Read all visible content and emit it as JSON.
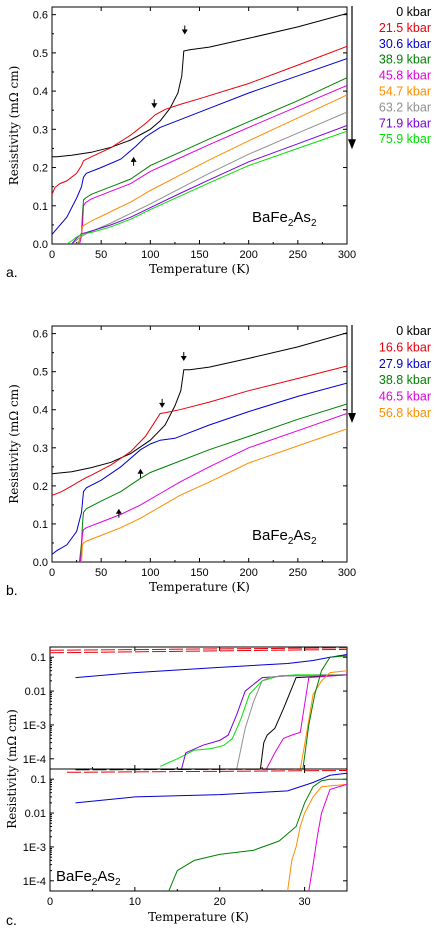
{
  "chart_data": [
    {
      "panel_label": "a.",
      "type": "line",
      "xlabel": "Temperature (K)",
      "ylabel": "Resistivity (mΩ cm)",
      "xlim": [
        0,
        300
      ],
      "ylim": [
        0,
        0.62
      ],
      "xticks": [
        "0",
        "50",
        "100",
        "150",
        "200",
        "250",
        "300"
      ],
      "yticks": [
        "0.0",
        "0.1",
        "0.2",
        "0.3",
        "0.4",
        "0.5",
        "0.6"
      ],
      "annotation": {
        "pre": "BaFe",
        "sub1": "2",
        "mid": "As",
        "sub2": "2"
      },
      "legend_position": "right",
      "series": [
        {
          "name": "0 kbar",
          "color": "#000000",
          "x": [
            0,
            5,
            20,
            40,
            60,
            80,
            100,
            110,
            120,
            128,
            132,
            134,
            140,
            160,
            200,
            250,
            300
          ],
          "y": [
            0.228,
            0.228,
            0.232,
            0.24,
            0.253,
            0.272,
            0.3,
            0.322,
            0.355,
            0.395,
            0.44,
            0.505,
            0.508,
            0.515,
            0.538,
            0.568,
            0.603
          ]
        },
        {
          "name": "21.5 kbar",
          "color": "#e8000b",
          "x": [
            0,
            3,
            8,
            15,
            25,
            30,
            32,
            40,
            60,
            80,
            95,
            105,
            115,
            130,
            150,
            200,
            250,
            300
          ],
          "y": [
            0.13,
            0.148,
            0.158,
            0.165,
            0.185,
            0.205,
            0.218,
            0.228,
            0.252,
            0.285,
            0.315,
            0.338,
            0.352,
            0.365,
            0.38,
            0.42,
            0.468,
            0.517
          ]
        },
        {
          "name": "30.6 kbar",
          "color": "#0000d0",
          "x": [
            0,
            5,
            15,
            25,
            30,
            32,
            35,
            50,
            70,
            85,
            95,
            110,
            130,
            160,
            200,
            250,
            300
          ],
          "y": [
            0.025,
            0.04,
            0.07,
            0.12,
            0.15,
            0.175,
            0.185,
            0.2,
            0.222,
            0.255,
            0.28,
            0.305,
            0.325,
            0.355,
            0.395,
            0.44,
            0.485
          ]
        },
        {
          "name": "38.9 kbar",
          "color": "#008000",
          "x": [
            26,
            28,
            30,
            31,
            32,
            34,
            40,
            60,
            80,
            100,
            130,
            160,
            200,
            250,
            300
          ],
          "y": [
            0.0,
            0.01,
            0.03,
            0.08,
            0.115,
            0.12,
            0.13,
            0.15,
            0.17,
            0.205,
            0.24,
            0.275,
            0.32,
            0.375,
            0.435
          ]
        },
        {
          "name": "45.8 kbar",
          "color": "#e000e0",
          "x": [
            28,
            30,
            31,
            32,
            34,
            40,
            60,
            80,
            100,
            130,
            160,
            200,
            250,
            300
          ],
          "y": [
            0.0,
            0.02,
            0.05,
            0.1,
            0.108,
            0.118,
            0.138,
            0.158,
            0.19,
            0.225,
            0.26,
            0.305,
            0.36,
            0.415
          ]
        },
        {
          "name": "54.7 kbar",
          "color": "#ff8c00",
          "x": [
            25,
            28,
            30,
            31,
            33,
            40,
            60,
            80,
            100,
            130,
            160,
            200,
            250,
            300
          ],
          "y": [
            0.0,
            0.01,
            0.03,
            0.045,
            0.05,
            0.06,
            0.085,
            0.11,
            0.14,
            0.18,
            0.22,
            0.27,
            0.33,
            0.39
          ]
        },
        {
          "name": "63.2 kbar",
          "color": "#909090",
          "x": [
            20,
            25,
            30,
            35,
            40,
            60,
            80,
            100,
            130,
            160,
            200,
            250,
            300
          ],
          "y": [
            0.0,
            0.01,
            0.02,
            0.027,
            0.033,
            0.055,
            0.08,
            0.105,
            0.145,
            0.185,
            0.235,
            0.29,
            0.345
          ]
        },
        {
          "name": "71.9 kbar",
          "color": "#7b00d8",
          "x": [
            20,
            25,
            30,
            35,
            40,
            60,
            80,
            100,
            130,
            160,
            200,
            250,
            300
          ],
          "y": [
            0.0,
            0.015,
            0.027,
            0.03,
            0.034,
            0.05,
            0.07,
            0.095,
            0.132,
            0.168,
            0.215,
            0.262,
            0.31
          ]
        },
        {
          "name": "75.9 kbar",
          "color": "#00e000",
          "x": [
            15,
            20,
            25,
            30,
            35,
            40,
            60,
            80,
            100,
            130,
            160,
            200,
            250,
            300
          ],
          "y": [
            0.0,
            0.008,
            0.018,
            0.025,
            0.028,
            0.03,
            0.045,
            0.065,
            0.09,
            0.125,
            0.16,
            0.205,
            0.25,
            0.295
          ]
        }
      ]
    },
    {
      "panel_label": "b.",
      "type": "line",
      "xlabel": "Temperature (K)",
      "ylabel": "Resistivity (mΩ cm)",
      "xlim": [
        0,
        300
      ],
      "ylim": [
        0,
        0.62
      ],
      "xticks": [
        "0",
        "50",
        "100",
        "150",
        "200",
        "250",
        "300"
      ],
      "yticks": [
        "0.0",
        "0.1",
        "0.2",
        "0.3",
        "0.4",
        "0.5",
        "0.6"
      ],
      "annotation": {
        "pre": "BaFe",
        "sub1": "2",
        "mid": "As",
        "sub2": "2"
      },
      "legend_position": "right",
      "series": [
        {
          "name": "0 kbar",
          "color": "#000000",
          "x": [
            0,
            5,
            20,
            40,
            60,
            80,
            100,
            115,
            125,
            131,
            134,
            140,
            160,
            200,
            250,
            300
          ],
          "y": [
            0.232,
            0.233,
            0.237,
            0.248,
            0.262,
            0.285,
            0.32,
            0.36,
            0.41,
            0.45,
            0.505,
            0.505,
            0.512,
            0.535,
            0.565,
            0.602
          ]
        },
        {
          "name": "16.6 kbar",
          "color": "#e8000b",
          "x": [
            0,
            10,
            20,
            30,
            35,
            40,
            60,
            80,
            95,
            105,
            110,
            115,
            130,
            160,
            200,
            250,
            300
          ],
          "y": [
            0.175,
            0.185,
            0.2,
            0.215,
            0.222,
            0.228,
            0.255,
            0.29,
            0.33,
            0.37,
            0.39,
            0.392,
            0.4,
            0.42,
            0.45,
            0.482,
            0.515
          ]
        },
        {
          "name": "27.9 kbar",
          "color": "#0000d0",
          "x": [
            0,
            5,
            15,
            25,
            30,
            32,
            35,
            50,
            70,
            90,
            100,
            110,
            125,
            160,
            200,
            250,
            300
          ],
          "y": [
            0.02,
            0.03,
            0.045,
            0.08,
            0.13,
            0.185,
            0.195,
            0.215,
            0.25,
            0.295,
            0.31,
            0.32,
            0.325,
            0.36,
            0.395,
            0.435,
            0.47
          ]
        },
        {
          "name": "38.8 kbar",
          "color": "#008000",
          "x": [
            28,
            30,
            31,
            32,
            35,
            50,
            70,
            90,
            100,
            120,
            160,
            200,
            250,
            300
          ],
          "y": [
            0.0,
            0.05,
            0.1,
            0.13,
            0.14,
            0.16,
            0.185,
            0.22,
            0.235,
            0.255,
            0.295,
            0.33,
            0.375,
            0.415
          ]
        },
        {
          "name": "46.5 kbar",
          "color": "#e000e0",
          "x": [
            29,
            30,
            31,
            32,
            35,
            50,
            70,
            90,
            110,
            130,
            160,
            200,
            250,
            300
          ],
          "y": [
            0.0,
            0.04,
            0.075,
            0.085,
            0.09,
            0.105,
            0.125,
            0.15,
            0.18,
            0.21,
            0.25,
            0.3,
            0.345,
            0.39
          ]
        },
        {
          "name": "56.8 kbar",
          "color": "#ff8c00",
          "x": [
            30,
            31,
            32,
            35,
            50,
            70,
            90,
            110,
            130,
            160,
            200,
            250,
            300
          ],
          "y": [
            0.0,
            0.045,
            0.05,
            0.055,
            0.07,
            0.09,
            0.115,
            0.145,
            0.175,
            0.21,
            0.26,
            0.305,
            0.35
          ]
        }
      ]
    },
    {
      "panel_label": "c.",
      "type": "line",
      "xlabel": "Temperature (K)",
      "ylabel": "Resistivity (mΩ cm)",
      "xlim": [
        0,
        35
      ],
      "yscale": "log",
      "xticks": [
        "0",
        "10",
        "20",
        "30"
      ],
      "yticks": [
        "0.1",
        "0.01",
        "1E-3",
        "1E-4"
      ],
      "annotation": {
        "pre": "BaFe",
        "sub1": "2",
        "mid": "As",
        "sub2": "2"
      },
      "subpanels": [
        {
          "ylim": [
            5e-05,
            0.2
          ],
          "series": [
            {
              "color": "#e8000b",
              "dash": true,
              "x": [
                0,
                35
              ],
              "y": [
                0.135,
                0.17
              ]
            },
            {
              "color": "#e8000b",
              "dash": true,
              "x": [
                0,
                35
              ],
              "y": [
                0.16,
                0.19
              ]
            },
            {
              "color": "#0000d0",
              "x": [
                3,
                10,
                20,
                28,
                31,
                33,
                35
              ],
              "y": [
                0.025,
                0.035,
                0.05,
                0.065,
                0.08,
                0.1,
                0.12
              ]
            },
            {
              "color": "#00e000",
              "x": [
                13,
                15,
                17,
                19,
                20.5,
                21.5,
                22.5,
                23.5,
                25,
                27,
                29,
                31,
                35
              ],
              "y": [
                6e-05,
                0.0001,
                0.00018,
                0.0002,
                0.00025,
                0.0004,
                0.0015,
                0.008,
                0.02,
                0.028,
                0.03,
                0.03,
                0.03
              ]
            },
            {
              "color": "#7b00d8",
              "x": [
                15.5,
                16,
                18,
                20,
                21,
                22,
                23,
                25,
                28,
                35
              ],
              "y": [
                5e-05,
                0.00015,
                0.00025,
                0.00035,
                0.0005,
                0.002,
                0.01,
                0.025,
                0.028,
                0.03
              ]
            },
            {
              "color": "#909090",
              "x": [
                22,
                23,
                24,
                25,
                26,
                28,
                35
              ],
              "y": [
                5e-05,
                0.0008,
                0.005,
                0.02,
                0.026,
                0.028,
                0.03
              ]
            },
            {
              "color": "#000000",
              "x": [
                24.8,
                25.2,
                25.6,
                26.5,
                27.5,
                29,
                35
              ],
              "y": [
                5e-05,
                0.0003,
                0.0005,
                0.0008,
                0.003,
                0.025,
                0.03
              ]
            },
            {
              "color": "#e000e0",
              "x": [
                25.5,
                26.5,
                27.5,
                28.5,
                29.5,
                30.5,
                35
              ],
              "y": [
                5e-05,
                0.00015,
                0.0004,
                0.0005,
                0.0006,
                0.025,
                0.03
              ]
            },
            {
              "color": "#ff8c00",
              "x": [
                29.5,
                30.2,
                31,
                32,
                33,
                35
              ],
              "y": [
                5e-05,
                0.0005,
                0.008,
                0.02,
                0.035,
                0.04
              ]
            },
            {
              "color": "#008000",
              "x": [
                29.8,
                30.5,
                31.2,
                32,
                33,
                35
              ],
              "y": [
                5e-05,
                0.001,
                0.008,
                0.04,
                0.1,
                0.11
              ]
            }
          ]
        },
        {
          "ylim": [
            5e-05,
            0.2
          ],
          "series": [
            {
              "color": "#e8000b",
              "dash": true,
              "x": [
                2,
                35
              ],
              "y": [
                0.16,
                0.18
              ]
            },
            {
              "color": "#000000",
              "dash": true,
              "x": [
                3,
                32
              ],
              "y": [
                0.19,
                0.2
              ]
            },
            {
              "color": "#0000d0",
              "x": [
                3,
                10,
                20,
                28,
                31,
                33,
                35
              ],
              "y": [
                0.02,
                0.03,
                0.035,
                0.045,
                0.08,
                0.13,
                0.15
              ]
            },
            {
              "color": "#008000",
              "x": [
                14,
                15,
                17,
                20,
                24,
                27,
                29,
                30,
                31,
                32,
                33,
                35
              ],
              "y": [
                5e-05,
                0.0002,
                0.0004,
                0.0006,
                0.0008,
                0.0015,
                0.004,
                0.02,
                0.06,
                0.09,
                0.1,
                0.1
              ]
            },
            {
              "color": "#ff8c00",
              "x": [
                28,
                28.5,
                29,
                29.5,
                30,
                31,
                32,
                35
              ],
              "y": [
                5e-05,
                0.0004,
                0.001,
                0.004,
                0.01,
                0.03,
                0.06,
                0.07
              ]
            },
            {
              "color": "#e000e0",
              "x": [
                30.5,
                31,
                31.5,
                32,
                33,
                35
              ],
              "y": [
                5e-05,
                0.0003,
                0.002,
                0.01,
                0.05,
                0.07
              ]
            }
          ]
        }
      ]
    }
  ]
}
